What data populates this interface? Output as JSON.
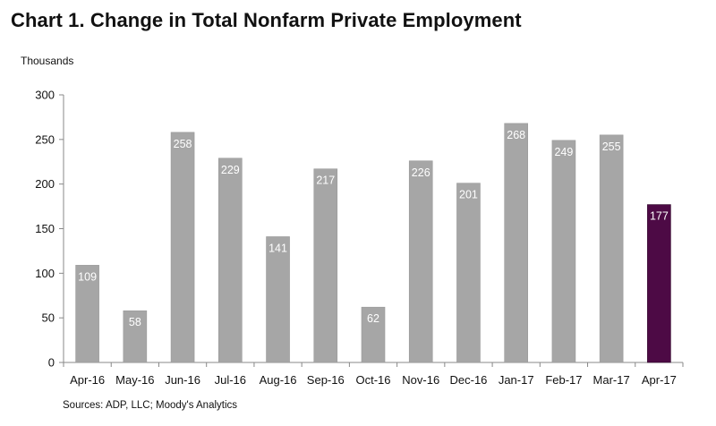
{
  "chart_data": {
    "type": "bar",
    "title": "Chart 1. Change in Total Nonfarm Private Employment",
    "ylabel": "Thousands",
    "xlabel": "",
    "source": "Sources: ADP, LLC; Moody's Analytics",
    "categories": [
      "Apr-16",
      "May-16",
      "Jun-16",
      "Jul-16",
      "Aug-16",
      "Sep-16",
      "Oct-16",
      "Nov-16",
      "Dec-16",
      "Jan-17",
      "Feb-17",
      "Mar-17",
      "Apr-17"
    ],
    "values": [
      109,
      58,
      258,
      229,
      141,
      217,
      62,
      226,
      201,
      268,
      249,
      255,
      177
    ],
    "ylim": [
      0,
      300
    ],
    "yticks": [
      "0",
      "50",
      "100",
      "150",
      "200",
      "250",
      "300"
    ],
    "grid": false,
    "legend": "none",
    "colors": {
      "bar": "#a6a6a6",
      "highlight": "#4d0a45",
      "axis": "#888888",
      "label": "#ffffff"
    },
    "highlight_index": 12
  }
}
